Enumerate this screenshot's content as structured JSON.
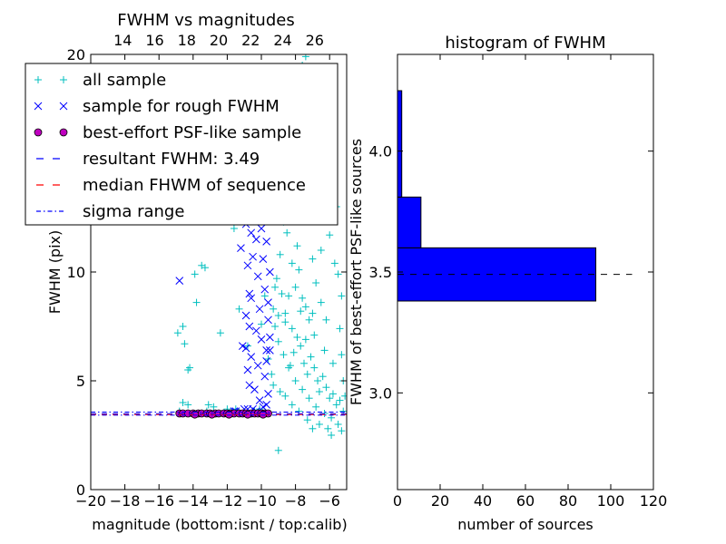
{
  "chart_data": [
    {
      "type": "scatter",
      "title": "FWHM vs magnitudes",
      "xlabel": "magnitude (bottom:isnt / top:calib)",
      "ylabel": "FWHM (pix)",
      "xlim": [
        -20,
        -5
      ],
      "ylim": [
        0,
        20
      ],
      "x_ticks": [
        -20,
        -18,
        -16,
        -14,
        -12,
        -10,
        -8,
        -6
      ],
      "x_tick_labels": [
        "−20",
        "−18",
        "−16",
        "−14",
        "−12",
        "−10",
        "−8",
        "−6"
      ],
      "y_ticks": [
        0,
        5,
        10,
        20
      ],
      "y_tick_labels": [
        "0",
        "5",
        "10",
        "20"
      ],
      "top_xlim": [
        12,
        28
      ],
      "top_ticks": [
        14,
        16,
        18,
        20,
        22,
        24,
        26
      ],
      "top_tick_labels": [
        "14",
        "16",
        "18",
        "20",
        "22",
        "24",
        "26"
      ],
      "legend_position": "upper-left",
      "series": [
        {
          "name": "all sample",
          "marker": "plus",
          "color": "#00bfbf",
          "points": [
            [
              -14.9,
              7.2
            ],
            [
              -14.6,
              7.5
            ],
            [
              -14.5,
              6.7
            ],
            [
              -14.3,
              5.5
            ],
            [
              -14.2,
              5.6
            ],
            [
              -14.6,
              4.0
            ],
            [
              -14.3,
              3.9
            ],
            [
              -13.9,
              9.9
            ],
            [
              -13.5,
              10.3
            ],
            [
              -13.3,
              10.2
            ],
            [
              -12.4,
              7.2
            ],
            [
              -11.6,
              12.0
            ],
            [
              -11.3,
              8.3
            ],
            [
              -10.8,
              6.6
            ],
            [
              -13.8,
              8.6
            ],
            [
              -13.1,
              3.9
            ],
            [
              -12.8,
              3.8
            ],
            [
              -14.8,
              3.6
            ],
            [
              -13.2,
              3.6
            ],
            [
              -12.0,
              3.7
            ],
            [
              -11.5,
              3.7
            ],
            [
              -10.4,
              3.6
            ],
            [
              -10.1,
              3.7
            ],
            [
              -10.0,
              7.6
            ],
            [
              -9.8,
              8.9
            ],
            [
              -9.5,
              13.4
            ],
            [
              -9.0,
              12.6
            ],
            [
              -9.0,
              1.8
            ],
            [
              -8.7,
              12.3
            ],
            [
              -8.5,
              11.8
            ],
            [
              -8.2,
              10.4
            ],
            [
              -8.0,
              9.3
            ],
            [
              -7.9,
              11.2
            ],
            [
              -7.8,
              10.1
            ],
            [
              -7.6,
              8.8
            ],
            [
              -7.5,
              13.0
            ],
            [
              -7.4,
              8.4
            ],
            [
              -7.2,
              7.8
            ],
            [
              -7.0,
              8.1
            ],
            [
              -6.8,
              9.5
            ],
            [
              -6.5,
              8.6
            ],
            [
              -6.2,
              7.8
            ],
            [
              -5.7,
              10.4
            ],
            [
              -5.5,
              9.9
            ],
            [
              -5.3,
              8.9
            ],
            [
              -5.4,
              7.4
            ],
            [
              -9.1,
              9.7
            ],
            [
              -8.8,
              9.0
            ],
            [
              -8.6,
              7.7
            ],
            [
              -8.4,
              8.9
            ],
            [
              -8.3,
              5.7
            ],
            [
              -8.1,
              6.3
            ],
            [
              -7.9,
              7.0
            ],
            [
              -7.7,
              6.6
            ],
            [
              -7.5,
              5.8
            ],
            [
              -7.3,
              5.3
            ],
            [
              -7.1,
              6.1
            ],
            [
              -6.9,
              5.6
            ],
            [
              -6.7,
              5.0
            ],
            [
              -6.6,
              4.5
            ],
            [
              -6.4,
              5.2
            ],
            [
              -6.2,
              4.7
            ],
            [
              -6.0,
              4.2
            ],
            [
              -5.8,
              4.4
            ],
            [
              -5.6,
              3.9
            ],
            [
              -5.4,
              4.1
            ],
            [
              -5.2,
              3.6
            ],
            [
              -5.3,
              2.7
            ],
            [
              -5.5,
              3.0
            ],
            [
              -5.9,
              3.3
            ],
            [
              -6.3,
              3.5
            ],
            [
              -6.8,
              3.8
            ],
            [
              -7.2,
              4.2
            ],
            [
              -7.6,
              4.6
            ],
            [
              -8.0,
              5.0
            ],
            [
              -8.4,
              5.6
            ],
            [
              -8.7,
              6.2
            ],
            [
              -9.0,
              6.8
            ],
            [
              -9.2,
              7.5
            ],
            [
              -9.3,
              8.3
            ],
            [
              -9.2,
              9.3
            ],
            [
              -8.9,
              10.8
            ],
            [
              -8.6,
              14.7
            ],
            [
              -8.1,
              15.5
            ],
            [
              -8.3,
              13.8
            ],
            [
              -8.5,
              16.6
            ],
            [
              -7.9,
              17.3
            ],
            [
              -7.2,
              18.2
            ],
            [
              -6.7,
              18.0
            ],
            [
              -7.6,
              19.5
            ],
            [
              -7.4,
              19.9
            ],
            [
              -8.8,
              17.0
            ],
            [
              -9.0,
              16.2
            ],
            [
              -9.4,
              15.0
            ],
            [
              -6.4,
              16.1
            ],
            [
              -5.8,
              15.4
            ],
            [
              -5.6,
              13.0
            ],
            [
              -6.0,
              11.7
            ],
            [
              -6.5,
              11.0
            ],
            [
              -7.0,
              10.6
            ],
            [
              -8.9,
              4.5
            ],
            [
              -9.3,
              4.8
            ],
            [
              -7.8,
              3.6
            ],
            [
              -7.3,
              3.2
            ],
            [
              -6.6,
              3.0
            ],
            [
              -6.1,
              2.8
            ],
            [
              -5.9,
              2.5
            ],
            [
              -7.0,
              2.8
            ],
            [
              -8.2,
              3.9
            ],
            [
              -8.6,
              4.3
            ],
            [
              -9.4,
              5.3
            ],
            [
              -9.6,
              6.0
            ],
            [
              -5.2,
              5.0
            ],
            [
              -5.1,
              4.3
            ],
            [
              -5.3,
              6.2
            ],
            [
              -6.9,
              7.1
            ],
            [
              -6.3,
              6.4
            ],
            [
              -5.8,
              5.8
            ],
            [
              -7.4,
              6.9
            ],
            [
              -8.2,
              7.4
            ],
            [
              -7.7,
              8.2
            ],
            [
              -8.6,
              8.1
            ],
            [
              -9.0,
              8.0
            ],
            [
              -6.8,
              12.4
            ],
            [
              -7.3,
              14.1
            ],
            [
              -8.0,
              12.8
            ]
          ]
        },
        {
          "name": "sample for rough FWHM",
          "marker": "x",
          "color": "#0000ff",
          "points": [
            [
              -14.8,
              9.6
            ],
            [
              -11.6,
              3.6
            ],
            [
              -11.5,
              3.6
            ],
            [
              -11.2,
              11.1
            ],
            [
              -11.0,
              14.3
            ],
            [
              -10.9,
              12.2
            ],
            [
              -10.8,
              10.3
            ],
            [
              -10.7,
              9.0
            ],
            [
              -10.6,
              8.8
            ],
            [
              -10.7,
              7.5
            ],
            [
              -10.8,
              5.5
            ],
            [
              -10.9,
              6.5
            ],
            [
              -11.1,
              6.6
            ],
            [
              -10.7,
              4.8
            ],
            [
              -10.8,
              3.7
            ],
            [
              -10.5,
              3.7
            ],
            [
              -10.6,
              16.4
            ],
            [
              -10.8,
              17.3
            ],
            [
              -10.9,
              15.6
            ],
            [
              -10.4,
              13.2
            ],
            [
              -10.3,
              11.5
            ],
            [
              -10.2,
              9.8
            ],
            [
              -10.1,
              8.3
            ],
            [
              -10.0,
              6.9
            ],
            [
              -10.2,
              5.7
            ],
            [
              -10.4,
              4.6
            ],
            [
              -10.1,
              4.1
            ],
            [
              -9.9,
              3.8
            ],
            [
              -9.8,
              5.2
            ],
            [
              -9.7,
              6.4
            ],
            [
              -9.6,
              7.8
            ],
            [
              -9.8,
              9.2
            ],
            [
              -9.9,
              10.6
            ],
            [
              -10.0,
              12.0
            ],
            [
              -10.1,
              13.7
            ],
            [
              -9.7,
              11.4
            ],
            [
              -9.6,
              12.9
            ],
            [
              -9.5,
              10.0
            ],
            [
              -9.6,
              8.6
            ],
            [
              -9.5,
              7.0
            ],
            [
              -9.7,
              5.9
            ],
            [
              -9.6,
              4.4
            ],
            [
              -9.8,
              14.6
            ],
            [
              -10.0,
              15.5
            ],
            [
              -9.9,
              16.6
            ],
            [
              -10.2,
              18.0
            ],
            [
              -10.5,
              14.8
            ],
            [
              -10.3,
              7.3
            ],
            [
              -10.6,
              6.1
            ],
            [
              -10.5,
              10.7
            ],
            [
              -9.7,
              3.9
            ],
            [
              -10.3,
              3.6
            ],
            [
              -11.0,
              3.7
            ],
            [
              -10.9,
              8.0
            ],
            [
              -10.6,
              11.8
            ],
            [
              -9.5,
              6.4
            ]
          ]
        },
        {
          "name": "best-effort PSF-like sample",
          "marker": "circle",
          "color": "#bf00bf",
          "points": [
            [
              -14.8,
              3.5
            ],
            [
              -14.6,
              3.5
            ],
            [
              -14.3,
              3.5
            ],
            [
              -14.0,
              3.5
            ],
            [
              -13.7,
              3.5
            ],
            [
              -13.5,
              3.5
            ],
            [
              -13.2,
              3.5
            ],
            [
              -13.0,
              3.5
            ],
            [
              -12.7,
              3.5
            ],
            [
              -12.5,
              3.5
            ],
            [
              -12.2,
              3.5
            ],
            [
              -12.0,
              3.5
            ],
            [
              -11.8,
              3.5
            ],
            [
              -11.6,
              3.5
            ],
            [
              -11.3,
              3.5
            ],
            [
              -11.1,
              3.5
            ],
            [
              -10.9,
              3.5
            ],
            [
              -10.6,
              3.5
            ],
            [
              -10.4,
              3.5
            ],
            [
              -10.2,
              3.5
            ],
            [
              -10.0,
              3.5
            ],
            [
              -9.8,
              3.5
            ],
            [
              -9.6,
              3.5
            ],
            [
              -13.9,
              3.45
            ],
            [
              -12.9,
              3.45
            ],
            [
              -11.9,
              3.45
            ],
            [
              -10.8,
              3.45
            ],
            [
              -9.9,
              3.45
            ]
          ]
        }
      ],
      "lines": [
        {
          "name": "resultant FWHM: 3.49",
          "style": "dashed",
          "color": "#0000ff",
          "y": 3.49
        },
        {
          "name": "median FHWM of sequence",
          "style": "dashed",
          "color": "#ff0000",
          "y": 3.45
        },
        {
          "name": "sigma range",
          "style": "dashdot",
          "color": "#0000ff",
          "y": [
            3.42,
            3.56
          ]
        }
      ]
    },
    {
      "type": "bar",
      "orientation": "horizontal",
      "title": "histogram of FWHM",
      "xlabel": "number of sources",
      "ylabel": "FWHM of best-effort PSF-like sources",
      "xlim": [
        0,
        120
      ],
      "ylim": [
        2.6,
        4.4
      ],
      "x_ticks": [
        0,
        20,
        40,
        60,
        80,
        100,
        120
      ],
      "x_tick_labels": [
        "0",
        "20",
        "40",
        "60",
        "80",
        "100",
        "120"
      ],
      "y_ticks": [
        3.0,
        3.5,
        4.0
      ],
      "y_tick_labels": [
        "3.0",
        "3.5",
        "4.0"
      ],
      "bins": [
        {
          "y0": 3.38,
          "y1": 3.6,
          "count": 93
        },
        {
          "y0": 3.6,
          "y1": 3.81,
          "count": 11
        },
        {
          "y0": 3.81,
          "y1": 4.25,
          "count": 2
        }
      ],
      "bar_color": "#0000ff",
      "reference_line": {
        "style": "dashed",
        "color": "#000000",
        "y": 3.49,
        "x_extent": [
          0,
          110
        ]
      }
    }
  ]
}
